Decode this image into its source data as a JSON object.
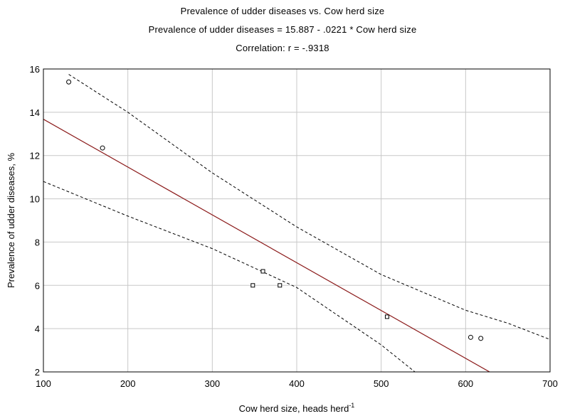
{
  "chart_data": {
    "type": "scatter",
    "title": "Prevalence of udder diseases vs. Cow herd size",
    "subtitle": "Prevalence of udder diseases = 15.887 - .0221  * Cow herd size",
    "annotation": "Correlation: r =   -.9318",
    "xlabel_main": "Cow herd size, heads herd",
    "xlabel_superscript": "-1",
    "ylabel": "Prevalence of udder diseases, %",
    "xlim": [
      100,
      700
    ],
    "ylim": [
      2,
      16
    ],
    "xticks": [
      100,
      200,
      300,
      400,
      500,
      600,
      700
    ],
    "yticks": [
      2,
      4,
      6,
      8,
      10,
      12,
      14,
      16
    ],
    "grid": true,
    "points": [
      {
        "x": 130,
        "y": 15.4,
        "marker": "circle"
      },
      {
        "x": 170,
        "y": 12.35,
        "marker": "circle"
      },
      {
        "x": 348,
        "y": 6.0,
        "marker": "square"
      },
      {
        "x": 360,
        "y": 6.65,
        "marker": "square"
      },
      {
        "x": 380,
        "y": 6.0,
        "marker": "square"
      },
      {
        "x": 507,
        "y": 4.55,
        "marker": "square"
      },
      {
        "x": 606,
        "y": 3.6,
        "marker": "circle"
      },
      {
        "x": 618,
        "y": 3.55,
        "marker": "circle"
      }
    ],
    "regression": {
      "intercept": 15.887,
      "slope": -0.0221,
      "x_range": [
        100,
        700
      ]
    },
    "confidence_upper": [
      [
        130,
        15.75
      ],
      [
        200,
        14.0
      ],
      [
        300,
        11.2
      ],
      [
        400,
        8.7
      ],
      [
        500,
        6.5
      ],
      [
        600,
        4.85
      ],
      [
        650,
        4.25
      ],
      [
        700,
        3.5
      ]
    ],
    "confidence_lower": [
      [
        100,
        10.8
      ],
      [
        200,
        9.2
      ],
      [
        300,
        7.7
      ],
      [
        400,
        5.9
      ],
      [
        500,
        3.25
      ],
      [
        540,
        2.0
      ]
    ],
    "colors": {
      "regression": "#8b1a1a",
      "points": "#000000",
      "grid": "#c8c8c8",
      "confidence": "#000000"
    }
  }
}
